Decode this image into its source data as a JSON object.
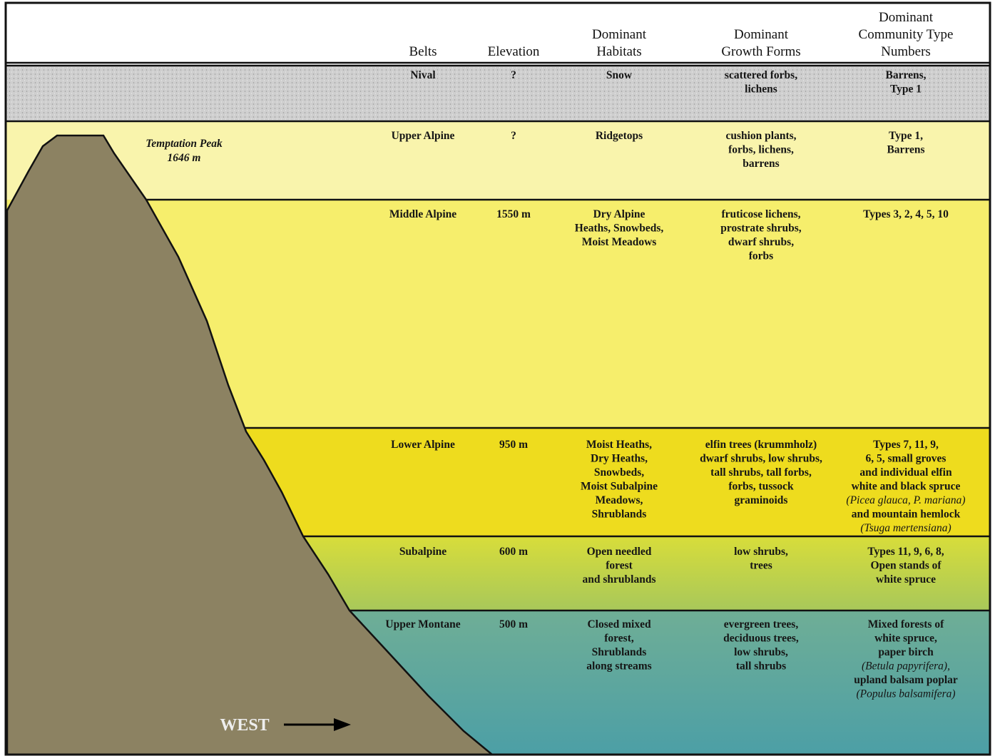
{
  "headers": {
    "belts": [
      "Belts"
    ],
    "elevation": [
      "Elevation"
    ],
    "habitats": [
      "Dominant",
      "Habitats"
    ],
    "growth_forms": [
      "Dominant",
      "Growth Forms"
    ],
    "community_types": [
      "Dominant",
      "Community Type",
      "Numbers"
    ]
  },
  "peak_label": [
    "Temptation Peak",
    "1646 m"
  ],
  "direction_label": "WEST",
  "rows": [
    {
      "belt": "Nival",
      "elevation": "?",
      "habitats": [
        "Snow"
      ],
      "growth_forms": [
        "scattered forbs,",
        "lichens"
      ],
      "community_types": [
        "Barrens,",
        "Type 1"
      ]
    },
    {
      "belt": "Upper Alpine",
      "elevation": "?",
      "habitats": [
        "Ridgetops"
      ],
      "growth_forms": [
        "cushion plants,",
        "forbs, lichens,",
        "barrens"
      ],
      "community_types": [
        "Type 1,",
        "Barrens"
      ]
    },
    {
      "belt": "Middle Alpine",
      "elevation": "1550 m",
      "habitats": [
        "Dry Alpine",
        "Heaths, Snowbeds,",
        "Moist Meadows"
      ],
      "growth_forms": [
        "fruticose lichens,",
        "prostrate shrubs,",
        "dwarf shrubs,",
        "forbs"
      ],
      "community_types": [
        "Types 3, 2, 4, 5, 10"
      ]
    },
    {
      "belt": "Lower Alpine",
      "elevation": "950 m",
      "habitats": [
        "Moist Heaths,",
        "Dry Heaths,",
        "Snowbeds,",
        "Moist Subalpine",
        "Meadows,",
        "Shrublands"
      ],
      "growth_forms": [
        "elfin trees (krummholz)",
        "dwarf shrubs, low shrubs,",
        "tall shrubs, tall forbs,",
        "forbs, tussock",
        "graminoids"
      ],
      "community_types": [
        "Types 7, 11, 9,",
        "6, 5, small groves",
        "and individual elfin",
        "white and black spruce",
        "(Picea glauca, P. mariana)",
        "and mountain hemlock",
        "(Tsuga mertensiana)"
      ]
    },
    {
      "belt": "Subalpine",
      "elevation": "600 m",
      "habitats": [
        "Open needled",
        "forest",
        "and shrublands"
      ],
      "growth_forms": [
        "low shrubs,",
        "trees"
      ],
      "community_types": [
        "Types 11, 9, 6, 8,",
        "Open stands of",
        "white spruce"
      ]
    },
    {
      "belt": "Upper Montane",
      "elevation": "500 m",
      "habitats": [
        "Closed mixed",
        "forest,",
        "Shrublands",
        "along streams"
      ],
      "growth_forms": [
        "evergreen trees,",
        "deciduous trees,",
        "low shrubs,",
        "tall shrubs"
      ],
      "community_types": [
        "Mixed forests of",
        "white spruce,",
        "paper birch",
        "(Betula papyrifera),",
        "upland balsam poplar",
        "(Populus balsamifera)"
      ]
    }
  ]
}
